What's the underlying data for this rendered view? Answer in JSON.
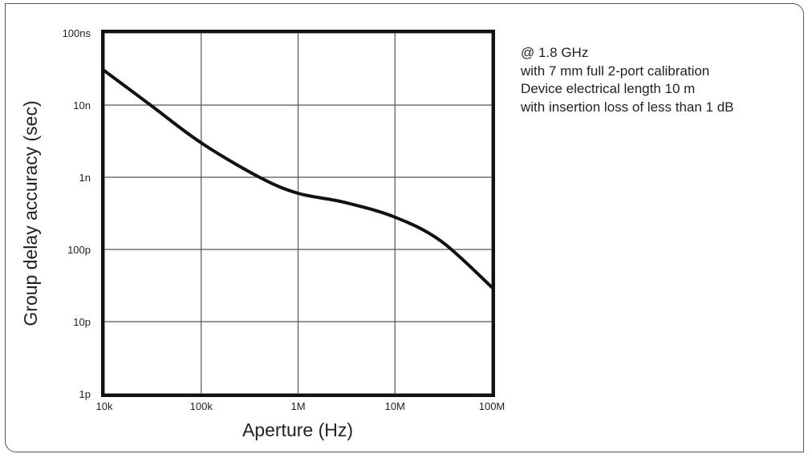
{
  "chart_data": {
    "type": "line",
    "xlabel": "Aperture (Hz)",
    "ylabel": "Group delay accuracy (sec)",
    "x_scale": "log",
    "y_scale": "log",
    "xlim": [
      10000,
      100000000
    ],
    "ylim": [
      1e-12,
      1e-07
    ],
    "x_ticks": [
      10000,
      100000,
      1000000,
      10000000,
      100000000
    ],
    "x_tick_labels": [
      "10k",
      "100k",
      "1M",
      "10M",
      "100M"
    ],
    "y_ticks": [
      1e-07,
      1e-08,
      1e-09,
      1e-10,
      1e-11,
      1e-12
    ],
    "y_tick_labels": [
      "100ns",
      "10n",
      "1n",
      "100p",
      "10p",
      "1p"
    ],
    "grid": true,
    "series": [
      {
        "x": [
          10000,
          30000,
          100000,
          400000,
          1000000,
          3000000,
          10000000,
          30000000,
          100000000
        ],
        "y": [
          3e-08,
          1e-08,
          3e-09,
          1e-09,
          6e-10,
          4.5e-10,
          2.8e-10,
          1.3e-10,
          3e-11
        ]
      }
    ],
    "annotations": [
      "@ 1.8 GHz",
      "with 7 mm full 2-port calibration",
      "Device electrical length 10 m",
      "with insertion loss of less than 1 dB"
    ]
  },
  "colors": {
    "line": "#111111",
    "grid": "#555555",
    "frame": "#555555"
  }
}
